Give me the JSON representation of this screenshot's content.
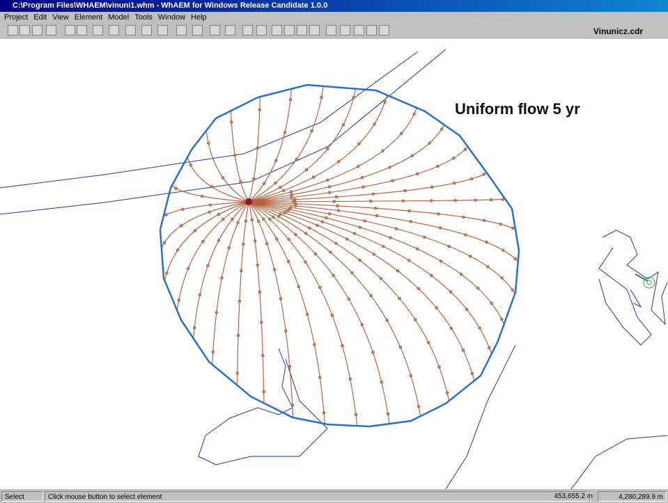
{
  "window": {
    "title": "C:\\Program Files\\WHAEM\\vinuni1.whm - WhAEM for Windows Release Candidate 1.0.0"
  },
  "menu": [
    "Project",
    "Edit",
    "View",
    "Element",
    "Model",
    "Tools",
    "Window",
    "Help"
  ],
  "toolbar": {
    "file_label": "Vinunicz.cdr"
  },
  "map": {
    "annotation": "Uniform flow 5 yr"
  },
  "status": {
    "mode": "Select",
    "hint": "Click mouse button to select element",
    "x": "453,655.2 m",
    "y": "4,280,289.9 m"
  }
}
